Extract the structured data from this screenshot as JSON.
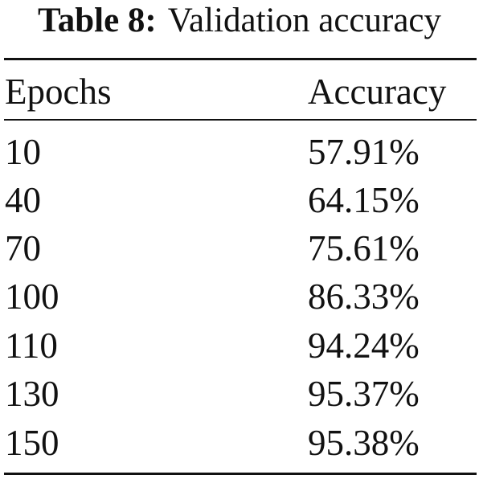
{
  "caption": {
    "label": "Table 8:",
    "text": "Validation accuracy"
  },
  "table": {
    "headers": {
      "epochs": "Epochs",
      "accuracy": "Accuracy"
    },
    "rows": [
      {
        "epochs": "10",
        "accuracy": "57.91%"
      },
      {
        "epochs": "40",
        "accuracy": "64.15%"
      },
      {
        "epochs": "70",
        "accuracy": "75.61%"
      },
      {
        "epochs": "100",
        "accuracy": "86.33%"
      },
      {
        "epochs": "110",
        "accuracy": "94.24%"
      },
      {
        "epochs": "130",
        "accuracy": "95.37%"
      },
      {
        "epochs": "150",
        "accuracy": "95.38%"
      }
    ]
  }
}
